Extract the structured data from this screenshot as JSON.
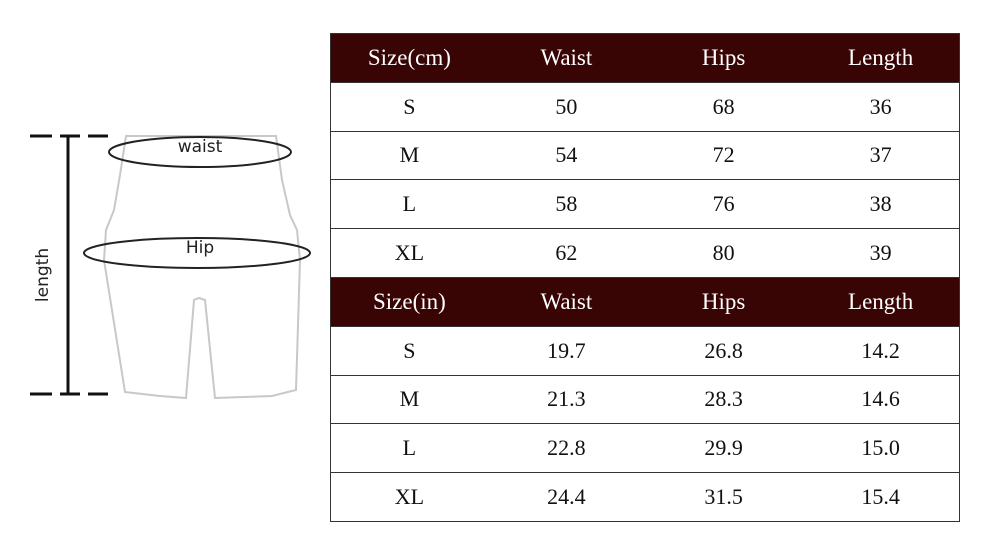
{
  "diagram": {
    "labels": {
      "waist": "waist",
      "hip": "Hip",
      "length": "length"
    }
  },
  "colors": {
    "header_bg": "#380404",
    "header_text": "#ffffff"
  },
  "tables": [
    {
      "headers": [
        "Size(cm)",
        "Waist",
        "Hips",
        "Length"
      ],
      "rows": [
        [
          "S",
          "50",
          "68",
          "36"
        ],
        [
          "M",
          "54",
          "72",
          "37"
        ],
        [
          "L",
          "58",
          "76",
          "38"
        ],
        [
          "XL",
          "62",
          "80",
          "39"
        ]
      ]
    },
    {
      "headers": [
        "Size(in)",
        "Waist",
        "Hips",
        "Length"
      ],
      "rows": [
        [
          "S",
          "19.7",
          "26.8",
          "14.2"
        ],
        [
          "M",
          "21.3",
          "28.3",
          "14.6"
        ],
        [
          "L",
          "22.8",
          "29.9",
          "15.0"
        ],
        [
          "XL",
          "24.4",
          "31.5",
          "15.4"
        ]
      ]
    }
  ]
}
